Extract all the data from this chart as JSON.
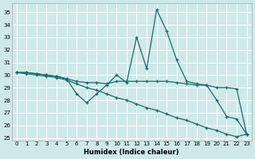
{
  "xlabel": "Humidex (Indice chaleur)",
  "bg_color": "#cfe9e9",
  "line_color": "#1a6b6b",
  "grid_color": "#ffffff",
  "xlim": [
    -0.5,
    23.5
  ],
  "ylim": [
    24.8,
    35.7
  ],
  "yticks": [
    25,
    26,
    27,
    28,
    29,
    30,
    31,
    32,
    33,
    34,
    35
  ],
  "xticks": [
    0,
    1,
    2,
    3,
    4,
    5,
    6,
    7,
    8,
    9,
    10,
    11,
    12,
    13,
    14,
    15,
    16,
    17,
    18,
    19,
    20,
    21,
    22,
    23
  ],
  "line1_x": [
    0,
    1,
    2,
    3,
    4,
    5,
    6,
    7,
    8,
    9,
    10,
    11,
    12,
    13,
    14,
    15,
    16,
    17,
    18,
    19,
    20,
    21,
    22,
    23
  ],
  "line1_y": [
    30.2,
    30.2,
    30.1,
    30.0,
    29.9,
    29.7,
    28.5,
    27.8,
    28.5,
    29.2,
    30.0,
    29.4,
    33.0,
    30.5,
    35.2,
    33.5,
    31.2,
    29.5,
    29.3,
    29.2,
    28.0,
    26.7,
    26.5,
    25.3
  ],
  "line2_x": [
    0,
    1,
    2,
    3,
    4,
    5,
    6,
    7,
    8,
    9,
    10,
    11,
    12,
    13,
    14,
    15,
    16,
    17,
    18,
    19,
    20,
    21,
    22,
    23
  ],
  "line2_y": [
    30.2,
    30.2,
    30.1,
    30.0,
    29.9,
    29.7,
    29.5,
    29.4,
    29.4,
    29.3,
    29.5,
    29.5,
    29.5,
    29.5,
    29.5,
    29.5,
    29.4,
    29.3,
    29.2,
    29.2,
    29.0,
    29.0,
    28.9,
    25.3
  ],
  "line3_x": [
    0,
    1,
    2,
    3,
    4,
    5,
    6,
    7,
    8,
    9,
    10,
    11,
    12,
    13,
    14,
    15,
    16,
    17,
    18,
    19,
    20,
    21,
    22,
    23
  ],
  "line3_y": [
    30.2,
    30.1,
    30.0,
    29.9,
    29.8,
    29.6,
    29.3,
    29.0,
    28.8,
    28.5,
    28.2,
    28.0,
    27.7,
    27.4,
    27.2,
    26.9,
    26.6,
    26.4,
    26.1,
    25.8,
    25.6,
    25.3,
    25.1,
    25.3
  ]
}
